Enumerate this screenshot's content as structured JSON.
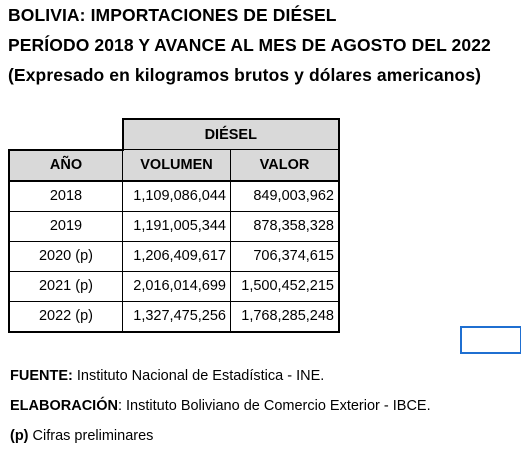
{
  "title": {
    "line1": "BOLIVIA: IMPORTACIONES DE DIÉSEL",
    "line2": "PERÍODO 2018 Y AVANCE AL MES DE AGOSTO DEL 2022",
    "line3": "(Expresado en kilogramos brutos y dólares americanos)"
  },
  "table": {
    "group_header": "DIÉSEL",
    "columns": {
      "year": "AÑO",
      "volume": "VOLUMEN",
      "value": "VALOR"
    },
    "rows": [
      {
        "year": "2018",
        "volume": "1,109,086,044",
        "value": "849,003,962"
      },
      {
        "year": "2019",
        "volume": "1,191,005,344",
        "value": "878,358,328"
      },
      {
        "year": "2020 (p)",
        "volume": "1,206,409,617",
        "value": "706,374,615"
      },
      {
        "year": "2021 (p)",
        "volume": "2,016,014,699",
        "value": "1,500,452,215"
      },
      {
        "year": "2022 (p)",
        "volume": "1,327,475,256",
        "value": "1,768,285,248"
      }
    ]
  },
  "notes": {
    "source_label": "FUENTE:",
    "source_text": " Instituto Nacional de Estadística - INE.",
    "elaboration_label": "ELABORACIÓN",
    "elaboration_text": ": Instituto Boliviano de Comercio Exterior - IBCE.",
    "prelim_label": "(p)",
    "prelim_text": " Cifras preliminares"
  },
  "colors": {
    "header_fill": "#d9d9d9",
    "selection_border": "#1f6fd1"
  }
}
